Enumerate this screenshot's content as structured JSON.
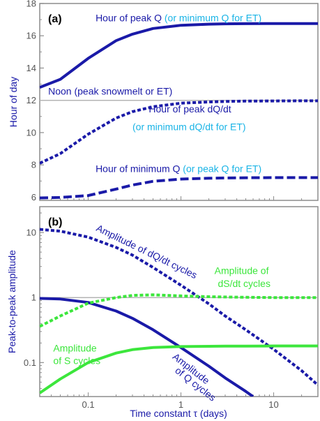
{
  "colors": {
    "blue": "#1a1aa8",
    "cyan": "#1ab4e6",
    "green": "#3ce63c",
    "ref": "#b4b4b4",
    "frame": "#8c8c8c"
  },
  "chart_data": [
    {
      "type": "line",
      "panel_label": "(a)",
      "ylabel": "Hour of day",
      "xscale": "log",
      "xlim": [
        0.03,
        30
      ],
      "ylim": [
        5.8,
        18
      ],
      "yticks": [
        "6",
        "8",
        "10",
        "12",
        "14",
        "16",
        "18"
      ],
      "ytick_values": [
        6,
        8,
        10,
        12,
        14,
        16,
        18
      ],
      "grid": false,
      "series": [
        {
          "key": "peak_q",
          "style": "solid",
          "color": "blue",
          "x": [
            0.03,
            0.05,
            0.1,
            0.2,
            0.3,
            0.5,
            1,
            2,
            3,
            5,
            10,
            20,
            30
          ],
          "y": [
            12.8,
            13.3,
            14.6,
            15.7,
            16.1,
            16.45,
            16.65,
            16.72,
            16.74,
            16.75,
            16.76,
            16.76,
            16.76
          ]
        },
        {
          "key": "peak_dqdt",
          "style": "dotted",
          "color": "blue",
          "x": [
            0.03,
            0.05,
            0.1,
            0.2,
            0.3,
            0.5,
            1,
            2,
            3,
            5,
            10,
            20,
            30
          ],
          "y": [
            8.1,
            8.7,
            9.9,
            10.9,
            11.3,
            11.6,
            11.82,
            11.9,
            11.93,
            11.95,
            11.96,
            11.97,
            11.97
          ]
        },
        {
          "key": "min_q",
          "style": "dashed",
          "color": "blue",
          "x": [
            0.03,
            0.05,
            0.1,
            0.2,
            0.3,
            0.5,
            1,
            2,
            3,
            5,
            10,
            20,
            30
          ],
          "y": [
            5.95,
            5.98,
            6.1,
            6.5,
            6.75,
            6.98,
            7.12,
            7.17,
            7.19,
            7.2,
            7.21,
            7.21,
            7.21
          ]
        },
        {
          "key": "noon",
          "style": "solid",
          "color": "ref",
          "x": [
            0.03,
            30
          ],
          "y": [
            12,
            12
          ]
        }
      ],
      "annotations": [
        {
          "parts": [
            {
              "t": "Hour of peak Q",
              "c": "blue"
            },
            {
              "t": " (or minimum Q for ET)",
              "c": "cyan"
            }
          ],
          "at": [
            0.12,
            16.9
          ]
        },
        {
          "parts": [
            {
              "t": "Noon (peak snowmelt or ET)",
              "c": "blue"
            }
          ],
          "at": [
            0.037,
            12.35
          ]
        },
        {
          "parts": [
            {
              "t": "Hour of peak dQ/dt",
              "c": "blue"
            }
          ],
          "at": [
            0.45,
            11.25
          ]
        },
        {
          "parts": [
            {
              "t": "(or minimum dQ/dt for ET)",
              "c": "cyan"
            }
          ],
          "at": [
            0.3,
            10.15
          ]
        },
        {
          "parts": [
            {
              "t": "Hour of minimum Q",
              "c": "blue"
            },
            {
              "t": " (or peak Q for ET)",
              "c": "cyan"
            }
          ],
          "at": [
            0.12,
            7.55
          ]
        }
      ]
    },
    {
      "type": "line",
      "panel_label": "(b)",
      "ylabel": "Peak-to-peak amplitude",
      "xlabel": "Time constant τ (days)",
      "xscale": "log",
      "yscale": "log",
      "xlim": [
        0.03,
        30
      ],
      "ylim": [
        0.03,
        25
      ],
      "xticks": [
        "0.1",
        "1",
        "10"
      ],
      "xtick_values": [
        0.1,
        1,
        10
      ],
      "yticks": [
        "0.1",
        "1",
        "10"
      ],
      "ytick_values": [
        0.1,
        1,
        10
      ],
      "grid": false,
      "series": [
        {
          "key": "amp_dqdt",
          "style": "dotted",
          "color": "blue",
          "x": [
            0.03,
            0.05,
            0.1,
            0.2,
            0.3,
            0.5,
            1,
            2,
            3,
            5,
            10,
            20,
            30
          ],
          "y": [
            11.2,
            10.5,
            8.5,
            5.9,
            4.5,
            2.9,
            1.55,
            0.8,
            0.52,
            0.32,
            0.16,
            0.075,
            0.045
          ]
        },
        {
          "key": "amp_q",
          "style": "solid",
          "color": "blue",
          "x": [
            0.03,
            0.05,
            0.1,
            0.2,
            0.3,
            0.5,
            1,
            2,
            3,
            5,
            6
          ],
          "y": [
            0.97,
            0.95,
            0.84,
            0.62,
            0.48,
            0.32,
            0.17,
            0.088,
            0.058,
            0.036,
            0.03
          ]
        },
        {
          "key": "amp_dsdt",
          "style": "dotted",
          "color": "green",
          "x": [
            0.03,
            0.05,
            0.1,
            0.2,
            0.3,
            0.5,
            1,
            2,
            3,
            5,
            10,
            20,
            30
          ],
          "y": [
            0.36,
            0.52,
            0.82,
            1.0,
            1.08,
            1.1,
            1.06,
            1.03,
            1.02,
            1.01,
            1.0,
            1.0,
            1.0
          ]
        },
        {
          "key": "amp_s",
          "style": "solid",
          "color": "green",
          "x": [
            0.03,
            0.05,
            0.1,
            0.2,
            0.3,
            0.5,
            1,
            2,
            3,
            5,
            10,
            20,
            30
          ],
          "y": [
            0.034,
            0.056,
            0.1,
            0.14,
            0.158,
            0.17,
            0.176,
            0.178,
            0.179,
            0.179,
            0.18,
            0.18,
            0.18
          ]
        },
        {
          "key": "unity",
          "style": "solid",
          "color": "ref",
          "x": [
            0.03,
            30
          ],
          "y": [
            1,
            1
          ]
        }
      ],
      "annotations": [
        {
          "parts": [
            {
              "t": "Amplitude of dQ/dt cycles",
              "c": "blue"
            }
          ],
          "at": [
            0.12,
            10.8
          ],
          "rotate": 26
        },
        {
          "parts": [
            {
              "t": "Amplitude of",
              "c": "green"
            }
          ],
          "at": [
            2.3,
            2.3
          ]
        },
        {
          "parts": [
            {
              "t": "dS/dt cycles",
              "c": "green"
            }
          ],
          "at": [
            2.5,
            1.45
          ]
        },
        {
          "parts": [
            {
              "t": "Amplitude",
              "c": "green"
            }
          ],
          "at": [
            0.042,
            0.148
          ]
        },
        {
          "parts": [
            {
              "t": "of S cycles",
              "c": "green"
            }
          ],
          "at": [
            0.042,
            0.095
          ]
        },
        {
          "parts": [
            {
              "t": "Amplitude",
              "c": "blue"
            }
          ],
          "at": [
            0.8,
            0.118
          ],
          "rotate": 38
        },
        {
          "parts": [
            {
              "t": "of Q cycles",
              "c": "blue"
            }
          ],
          "at": [
            0.85,
            0.072
          ],
          "rotate": 38
        }
      ]
    }
  ]
}
